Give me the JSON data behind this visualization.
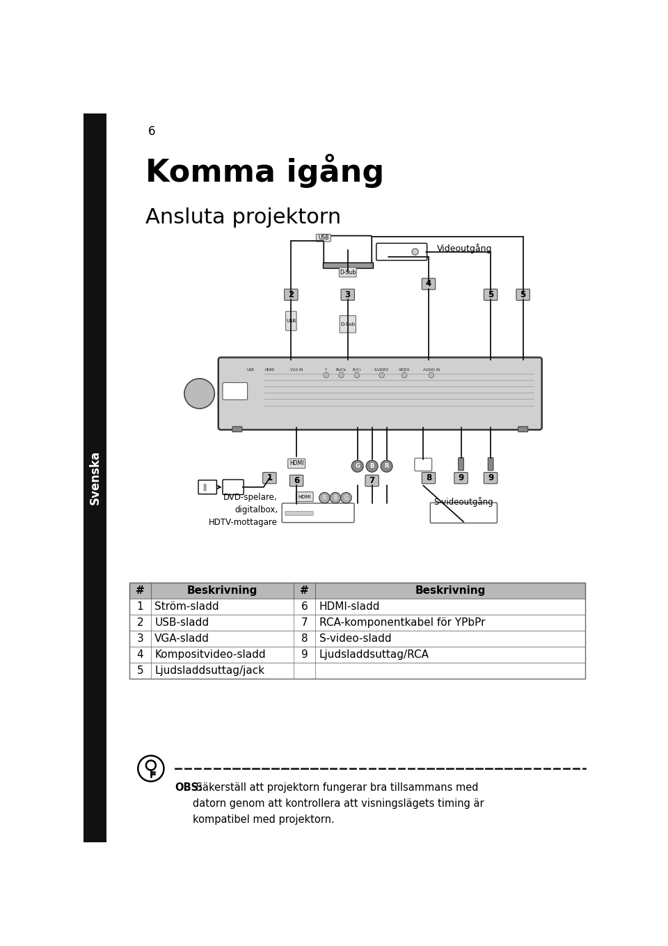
{
  "page_number": "6",
  "sidebar_text": "Svenska",
  "title": "Komma igång",
  "subtitle": "Ansluta projektorn",
  "table_headers": [
    "#",
    "Beskrivning",
    "#",
    "Beskrivning"
  ],
  "table_rows": [
    [
      "1",
      "Ström-sladd",
      "6",
      "HDMI-sladd"
    ],
    [
      "2",
      "USB-sladd",
      "7",
      "RCA-komponentkabel för YPbPr"
    ],
    [
      "3",
      "VGA-sladd",
      "8",
      "S-video-sladd"
    ],
    [
      "4",
      "Kompositvideo-sladd",
      "9",
      "Ljudsladdsuttag/RCA"
    ],
    [
      "5",
      "Ljudsladdsuttag/jack",
      "",
      ""
    ]
  ],
  "obs_text_bold": "OBS:",
  "obs_text": " Säkerställ att projektorn fungerar bra tillsammans med\ndatorn genom att kontrollera att visningslägets timing är\nkompatibel med projektorn.",
  "labels": {
    "videoutgang": "Videoutgång",
    "dvd": "DVD-spelare,\ndigitalbox,\nHDTV-mottagare",
    "svideo_out": "S-videoutgång",
    "usb": "USB",
    "dsub": "D-Sub",
    "hdmi": "HDMI"
  },
  "bg_color": "#ffffff",
  "text_color": "#000000",
  "sidebar_bg": "#111111",
  "sidebar_text_color": "#ffffff",
  "table_header_bg": "#b8b8b8",
  "table_border_color": "#666666",
  "label_box_bg": "#c0c0c0",
  "label_box_text": "#000000",
  "dashed_line_color": "#222222",
  "title_fontsize": 32,
  "subtitle_fontsize": 22,
  "table_fontsize": 11,
  "obs_fontsize": 10.5,
  "diagram_scale": 1.0
}
